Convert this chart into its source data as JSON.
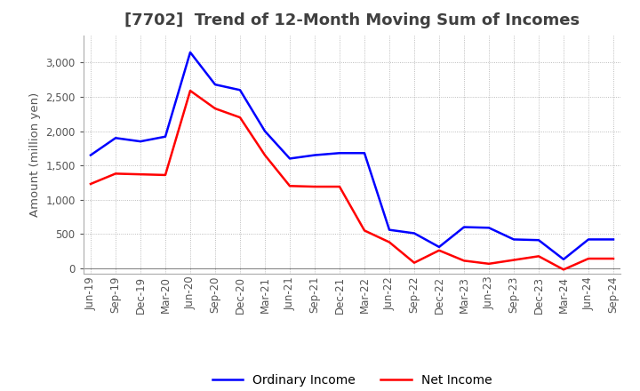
{
  "title": "[7702]  Trend of 12-Month Moving Sum of Incomes",
  "ylabel": "Amount (million yen)",
  "ylim": [
    -80,
    3400
  ],
  "yticks": [
    0,
    500,
    1000,
    1500,
    2000,
    2500,
    3000
  ],
  "x_labels": [
    "Jun-19",
    "Sep-19",
    "Dec-19",
    "Mar-20",
    "Jun-20",
    "Sep-20",
    "Dec-20",
    "Mar-21",
    "Jun-21",
    "Sep-21",
    "Dec-21",
    "Mar-22",
    "Jun-22",
    "Sep-22",
    "Dec-22",
    "Mar-23",
    "Jun-23",
    "Sep-23",
    "Dec-23",
    "Mar-24",
    "Jun-24",
    "Sep-24"
  ],
  "ordinary_income": [
    1650,
    1900,
    1850,
    1920,
    3150,
    2680,
    2600,
    2000,
    1600,
    1650,
    1680,
    1680,
    560,
    510,
    310,
    600,
    590,
    420,
    410,
    130,
    420,
    420
  ],
  "net_income": [
    1230,
    1380,
    1370,
    1360,
    2590,
    2330,
    2200,
    1650,
    1200,
    1190,
    1190,
    550,
    380,
    80,
    260,
    110,
    65,
    120,
    175,
    -20,
    140,
    140
  ],
  "ordinary_color": "#0000ff",
  "net_color": "#ff0000",
  "bg_color": "#ffffff",
  "grid_color": "#aaaaaa",
  "title_color": "#404040",
  "title_fontsize": 13,
  "legend_fontsize": 10,
  "axis_fontsize": 8.5
}
